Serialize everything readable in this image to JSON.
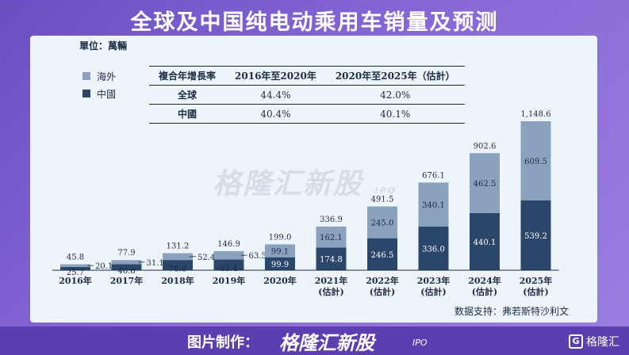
{
  "headline": "全球及中国纯电动乘用车销量及预测",
  "unit_label": "單位：萬輛",
  "legend": [
    {
      "label": "海外",
      "color": "#8aa2bd"
    },
    {
      "label": "中國",
      "color": "#2b466b"
    }
  ],
  "cagr_table": {
    "header": [
      "複合年增長率",
      "2016年至2020年",
      "2020年至2025年（估計）"
    ],
    "rows": [
      [
        "全球",
        "44.4%",
        "42.0%"
      ],
      [
        "中國",
        "40.4%",
        "40.1%"
      ]
    ]
  },
  "watermark": "格隆汇新股",
  "watermark_ipo": "IPO",
  "source": "数据支持：弗若斯特沙利文",
  "footer": {
    "prefix": "图片制作：",
    "brand": "格隆汇新股",
    "ipo": "IPO",
    "logo": "格隆汇",
    "logo_mark": "G"
  },
  "colors": {
    "overseas": "#8aa2bd",
    "china": "#2b466b"
  },
  "chart_data": {
    "type": "bar",
    "stacked": true,
    "categories": [
      "2016年",
      "2017年",
      "2018年",
      "2019年",
      "2020年",
      "2021年\n(估計)",
      "2022年\n(估計)",
      "2023年\n(估計)",
      "2024年\n(估計)",
      "2025年\n(估計)"
    ],
    "category_lines": [
      [
        "2016年"
      ],
      [
        "2017年"
      ],
      [
        "2018年"
      ],
      [
        "2019年"
      ],
      [
        "2020年"
      ],
      [
        "2021年",
        "(估計)"
      ],
      [
        "2022年",
        "(估計)"
      ],
      [
        "2023年",
        "(估計)"
      ],
      [
        "2024年",
        "(估計)"
      ],
      [
        "2025年",
        "(估計)"
      ]
    ],
    "series": [
      {
        "name": "中國",
        "values": [
          25.7,
          46.8,
          78.8,
          83.4,
          99.9,
          174.8,
          246.5,
          336.0,
          440.1,
          539.2
        ]
      },
      {
        "name": "海外",
        "values": [
          20.1,
          31.1,
          52.4,
          63.5,
          99.1,
          162.1,
          245.0,
          340.1,
          462.5,
          609.5
        ]
      }
    ],
    "totals": [
      45.8,
      77.9,
      131.2,
      146.9,
      199.0,
      336.9,
      491.5,
      676.1,
      902.6,
      1148.6
    ],
    "series_labels": {
      "中國": [
        "25.7",
        "46.8",
        "78.8",
        "83.4",
        "99.9",
        "174.8",
        "246.5",
        "336.0",
        "440.1",
        "539.2"
      ],
      "海外": [
        "20.1",
        "31.1",
        "52.4",
        "63.5",
        "99.1",
        "162.1",
        "245.0",
        "340.1",
        "462.5",
        "609.5"
      ]
    },
    "total_labels": [
      "45.8",
      "77.9",
      "131.2",
      "146.9",
      "199.0",
      "336.9",
      "491.5",
      "676.1",
      "902.6",
      "1,148.6"
    ],
    "ylim": [
      0,
      1148.6
    ]
  }
}
